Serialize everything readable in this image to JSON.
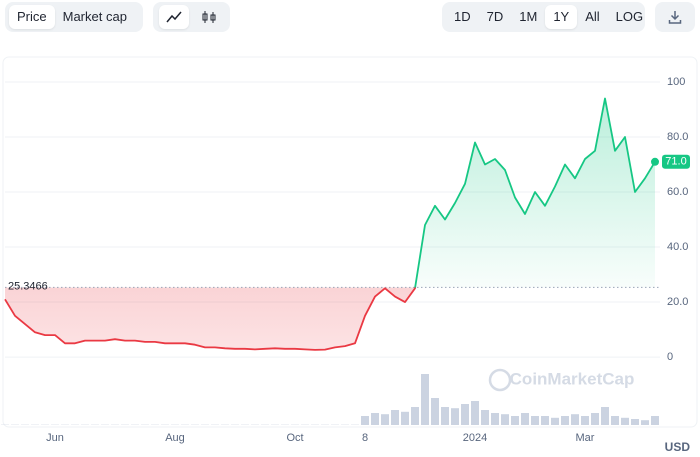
{
  "controls": {
    "metric_tabs": [
      "Price",
      "Market cap"
    ],
    "selected_metric": 0,
    "range_tabs": [
      "1D",
      "7D",
      "1M",
      "1Y",
      "All",
      "LOG"
    ],
    "selected_range": 3
  },
  "chart_data": {
    "type": "line",
    "categories": [
      null,
      null,
      null,
      null,
      null,
      "Jun",
      null,
      null,
      null,
      null,
      null,
      null,
      null,
      null,
      null,
      null,
      null,
      "Aug",
      null,
      null,
      null,
      null,
      null,
      null,
      null,
      null,
      null,
      null,
      null,
      "Oct",
      null,
      null,
      null,
      null,
      null,
      null,
      "8",
      null,
      null,
      null,
      null,
      null,
      null,
      null,
      null,
      null,
      null,
      "2024",
      null,
      null,
      null,
      null,
      null,
      null,
      null,
      null,
      null,
      null,
      "Mar",
      null,
      null,
      null,
      null,
      null,
      null,
      null
    ],
    "values": [
      21,
      15,
      12,
      9,
      8,
      8,
      5,
      5,
      6,
      6,
      6,
      6.5,
      6,
      6,
      5.5,
      5.5,
      5,
      5,
      5,
      4.5,
      3.5,
      3.5,
      3.2,
      3,
      3,
      2.8,
      3,
      3.2,
      3,
      3,
      2.8,
      2.6,
      2.7,
      3.5,
      4,
      5,
      15,
      22,
      25,
      22,
      20,
      25,
      48,
      55,
      50,
      56,
      63,
      78,
      70,
      72,
      68,
      58,
      52,
      60,
      55,
      62,
      70,
      65,
      72,
      75,
      94,
      75,
      80,
      60,
      65,
      71
    ],
    "last_label": "71.0",
    "reference_value": 25.3466,
    "color_above": "#16c784",
    "color_below": "#ea3943",
    "volume": [
      0.5,
      0.5,
      0.5,
      0.5,
      0.5,
      0.5,
      0.5,
      0.5,
      0.5,
      0.5,
      0.5,
      0.5,
      0.5,
      0.5,
      0.5,
      0.5,
      0.5,
      0.5,
      0.5,
      0.5,
      0.5,
      0.5,
      0.5,
      0.5,
      0.5,
      0.5,
      0.5,
      0.5,
      0.5,
      0.5,
      0.5,
      0.5,
      0.5,
      0.5,
      0.5,
      0.5,
      15,
      20,
      18,
      25,
      22,
      30,
      85,
      45,
      30,
      28,
      35,
      40,
      25,
      20,
      18,
      15,
      20,
      15,
      15,
      12,
      15,
      18,
      15,
      20,
      30,
      15,
      12,
      10,
      8,
      15
    ],
    "volume_lim": [
      0,
      100
    ],
    "volume_color": "#cbd3e1",
    "ylim": [
      -24.7,
      109.1
    ],
    "yticks": [
      0,
      {
        "value": 20,
        "label": "20.0"
      },
      {
        "value": 40,
        "label": "40.0"
      },
      {
        "value": 60,
        "label": "60.0"
      },
      {
        "value": 80,
        "label": "80.0"
      },
      100
    ],
    "grid": true,
    "currency": "USD",
    "watermark": "CoinMarketCap"
  }
}
